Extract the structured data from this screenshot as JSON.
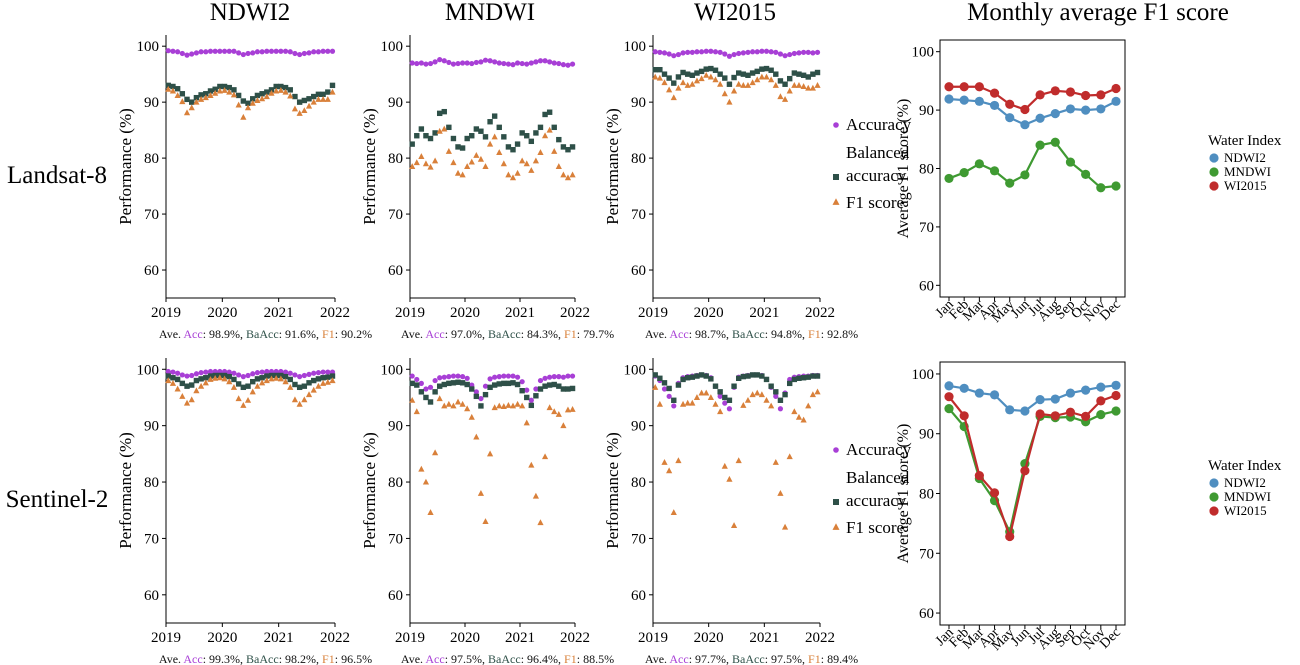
{
  "column_titles": [
    "NDWI2",
    "MNDWI",
    "WI2015",
    "Monthly average F1 score"
  ],
  "row_labels": [
    "Landsat-8",
    "Sentinel-2"
  ],
  "perf_axis": {
    "ylabel": "Performance (%)",
    "yticks": [
      60,
      70,
      80,
      90,
      100
    ],
    "ylim": [
      55,
      102
    ],
    "xticks": [
      "2019",
      "2020",
      "2021",
      "2022"
    ],
    "xlim": [
      2019,
      2022
    ]
  },
  "f1_axis": {
    "ylabel": "Average F1 score (%)",
    "yticks": [
      60,
      70,
      80,
      90,
      100
    ],
    "ylim": [
      58,
      102
    ],
    "months": [
      "Jan",
      "Feb",
      "Mar",
      "Apr",
      "May",
      "Jun",
      "Jul",
      "Aug",
      "Sep",
      "Oct",
      "Nov",
      "Dec"
    ]
  },
  "perf_legend": {
    "items": [
      "Accuracy",
      "Balanced accuracy",
      "F1 score"
    ]
  },
  "f1_legend": {
    "title": "Water Index",
    "items": [
      "NDWI2",
      "MNDWI",
      "WI2015"
    ]
  },
  "summary_labels": {
    "prefix": "Ave.",
    "acc": "Acc",
    "baacc": "BaAcc",
    "f1": "F1"
  },
  "colors": {
    "accuracy": "#a83fd6",
    "balanced": "#2e5048",
    "f1": "#d9803a",
    "ndwi2": "#4f8ec0",
    "mndwi": "#3f9a32",
    "wi2015": "#c02c2c"
  },
  "chart_data": [
    {
      "type": "scatter",
      "row": "Landsat-8",
      "index": "NDWI2",
      "start": 2019.04,
      "step": 0.0833,
      "summary": {
        "acc": "98.9%",
        "baacc": "91.6%",
        "f1": "90.2%"
      },
      "series": [
        {
          "name": "Accuracy",
          "values": [
            99.2,
            99.1,
            99.0,
            98.7,
            98.4,
            98.6,
            98.8,
            99.0,
            99.0,
            99.1,
            99.1,
            99.1,
            99.1,
            99.1,
            99.1,
            98.8,
            98.5,
            98.7,
            98.8,
            99.0,
            99.0,
            99.1,
            99.1,
            99.1,
            99.1,
            99.1,
            99.0,
            98.7,
            98.5,
            98.7,
            98.8,
            99.0,
            99.0,
            99.1,
            99.1,
            99.1
          ]
        },
        {
          "name": "Balanced accuracy",
          "values": [
            93.0,
            92.8,
            92.4,
            91.5,
            90.5,
            90.0,
            90.8,
            91.3,
            91.5,
            92.0,
            92.3,
            92.8,
            92.8,
            92.6,
            92.2,
            91.2,
            90.2,
            89.8,
            90.6,
            91.2,
            91.5,
            91.8,
            92.2,
            92.8,
            92.8,
            92.6,
            92.2,
            91.0,
            90.0,
            90.3,
            90.6,
            91.0,
            91.4,
            91.4,
            91.8,
            93.0
          ]
        },
        {
          "name": "F1 score",
          "values": [
            92.3,
            92.0,
            91.2,
            90.1,
            88.1,
            89.0,
            90.0,
            90.5,
            90.8,
            91.2,
            91.6,
            92.0,
            92.1,
            91.8,
            91.3,
            89.5,
            87.3,
            89.0,
            89.8,
            90.3,
            90.6,
            91.0,
            91.6,
            92.0,
            92.1,
            91.8,
            91.1,
            88.8,
            88.0,
            88.5,
            89.3,
            90.0,
            90.5,
            90.5,
            90.5,
            91.8
          ]
        }
      ]
    },
    {
      "type": "scatter",
      "row": "Landsat-8",
      "index": "MNDWI",
      "start": 2019.04,
      "step": 0.0833,
      "summary": {
        "acc": "97.0%",
        "baacc": "84.3%",
        "f1": "79.7%"
      },
      "series": [
        {
          "name": "Accuracy",
          "values": [
            97.0,
            96.9,
            97.0,
            96.8,
            96.9,
            97.2,
            97.6,
            97.4,
            97.1,
            96.8,
            96.9,
            97.0,
            97.0,
            96.9,
            97.1,
            97.2,
            97.5,
            97.4,
            97.2,
            97.0,
            96.9,
            96.8,
            96.7,
            97.0,
            96.9,
            96.8,
            97.0,
            97.2,
            97.4,
            97.4,
            97.2,
            97.0,
            96.9,
            96.7,
            96.6,
            96.8
          ]
        },
        {
          "name": "Balanced accuracy",
          "values": [
            82.5,
            84.0,
            85.2,
            84.0,
            83.5,
            84.5,
            88.0,
            88.3,
            85.5,
            83.5,
            82.0,
            81.8,
            83.5,
            84.0,
            85.2,
            84.8,
            83.8,
            86.5,
            87.5,
            85.5,
            83.8,
            82.0,
            81.5,
            82.5,
            84.5,
            84.0,
            83.0,
            84.5,
            85.5,
            87.8,
            88.2,
            85.5,
            83.3,
            82.0,
            81.5,
            82.0
          ]
        },
        {
          "name": "F1 score",
          "values": [
            78.5,
            79.2,
            80.3,
            79.0,
            78.4,
            79.5,
            84.8,
            85.2,
            81.2,
            79.2,
            77.3,
            77.0,
            78.5,
            79.3,
            80.5,
            79.8,
            78.5,
            82.5,
            83.8,
            81.0,
            79.0,
            77.0,
            76.5,
            77.3,
            79.5,
            79.0,
            77.8,
            79.5,
            81.0,
            84.0,
            85.0,
            81.2,
            78.5,
            77.0,
            76.5,
            77.0
          ]
        }
      ]
    },
    {
      "type": "scatter",
      "row": "Landsat-8",
      "index": "WI2015",
      "start": 2019.04,
      "step": 0.0833,
      "summary": {
        "acc": "98.7%",
        "baacc": "94.8%",
        "f1": "92.8%"
      },
      "series": [
        {
          "name": "Accuracy",
          "values": [
            99.0,
            98.9,
            98.8,
            98.6,
            98.3,
            98.5,
            98.8,
            98.9,
            98.9,
            99.0,
            99.0,
            99.1,
            99.1,
            99.0,
            98.9,
            98.6,
            98.2,
            98.5,
            98.7,
            98.8,
            98.9,
            99.0,
            99.0,
            99.1,
            99.1,
            99.0,
            98.9,
            98.6,
            98.3,
            98.5,
            98.7,
            98.8,
            98.9,
            98.9,
            98.8,
            98.9
          ]
        },
        {
          "name": "Balanced accuracy",
          "values": [
            95.8,
            95.8,
            95.0,
            94.3,
            93.4,
            94.5,
            95.3,
            95.0,
            94.8,
            95.2,
            95.5,
            95.9,
            96.0,
            95.7,
            95.0,
            94.3,
            93.2,
            94.4,
            95.2,
            95.0,
            94.8,
            95.2,
            95.5,
            95.9,
            96.0,
            95.7,
            95.0,
            93.8,
            93.2,
            94.2,
            95.2,
            95.0,
            94.8,
            94.5,
            95.0,
            95.3
          ]
        },
        {
          "name": "F1 score",
          "values": [
            94.5,
            94.3,
            93.5,
            92.2,
            90.8,
            92.5,
            93.5,
            93.0,
            93.2,
            93.8,
            94.2,
            94.8,
            94.5,
            94.0,
            93.2,
            91.5,
            90.0,
            92.0,
            93.2,
            93.0,
            93.0,
            93.5,
            94.0,
            94.5,
            94.5,
            94.0,
            93.0,
            91.0,
            90.5,
            92.0,
            93.0,
            93.0,
            92.8,
            92.5,
            92.5,
            93.0
          ]
        }
      ]
    },
    {
      "type": "scatter",
      "row": "Sentinel-2",
      "index": "NDWI2",
      "start": 2019.04,
      "step": 0.0833,
      "summary": {
        "acc": "99.3%",
        "baacc": "98.2%",
        "f1": "96.5%"
      },
      "series": [
        {
          "name": "Accuracy",
          "values": [
            99.6,
            99.5,
            99.3,
            99.0,
            98.8,
            98.9,
            99.2,
            99.4,
            99.5,
            99.6,
            99.6,
            99.6,
            99.6,
            99.5,
            99.3,
            99.0,
            98.7,
            98.9,
            99.2,
            99.4,
            99.5,
            99.6,
            99.6,
            99.6,
            99.6,
            99.5,
            99.3,
            99.0,
            98.7,
            98.9,
            99.1,
            99.3,
            99.4,
            99.5,
            99.5,
            99.5
          ]
        },
        {
          "name": "Balanced accuracy",
          "values": [
            98.8,
            98.5,
            98.2,
            97.5,
            97.0,
            97.2,
            98.0,
            98.3,
            98.5,
            98.8,
            98.9,
            98.9,
            98.9,
            98.7,
            98.2,
            97.4,
            96.8,
            97.0,
            97.8,
            98.3,
            98.5,
            98.8,
            98.9,
            98.9,
            98.9,
            98.7,
            98.2,
            97.3,
            96.8,
            97.0,
            97.6,
            98.0,
            98.3,
            98.5,
            98.6,
            98.8
          ]
        },
        {
          "name": "F1 score",
          "values": [
            98.0,
            97.5,
            96.5,
            95.2,
            94.0,
            94.6,
            96.2,
            97.0,
            97.6,
            98.2,
            98.4,
            98.5,
            98.3,
            97.8,
            96.8,
            94.8,
            93.6,
            94.5,
            96.0,
            97.0,
            97.6,
            98.0,
            98.3,
            98.4,
            98.3,
            97.8,
            96.8,
            94.6,
            93.8,
            94.6,
            95.5,
            96.3,
            97.0,
            97.5,
            97.7,
            98.0
          ]
        }
      ]
    },
    {
      "type": "scatter",
      "row": "Sentinel-2",
      "index": "MNDWI",
      "start": 2019.04,
      "step": 0.0833,
      "summary": {
        "acc": "97.5%",
        "baacc": "96.4%",
        "f1": "88.5%"
      },
      "series": [
        {
          "name": "Accuracy",
          "values": [
            98.8,
            98.2,
            97.5,
            96.5,
            96.8,
            98.0,
            98.5,
            98.6,
            98.7,
            98.8,
            98.8,
            98.7,
            98.4,
            97.2,
            96.0,
            94.8,
            97.0,
            98.3,
            98.6,
            98.7,
            98.8,
            98.8,
            98.8,
            98.6,
            97.8,
            96.3,
            94.5,
            96.5,
            98.0,
            98.4,
            98.6,
            98.7,
            98.7,
            98.6,
            98.8,
            98.8
          ]
        },
        {
          "name": "Balanced accuracy",
          "values": [
            97.5,
            97.2,
            96.0,
            95.0,
            94.2,
            96.0,
            97.0,
            97.3,
            97.5,
            97.6,
            97.7,
            97.6,
            97.3,
            96.5,
            95.2,
            93.5,
            95.5,
            96.8,
            97.2,
            97.4,
            97.5,
            97.5,
            97.6,
            97.3,
            96.2,
            95.0,
            93.6,
            95.3,
            96.5,
            97.0,
            97.2,
            97.3,
            97.0,
            96.5,
            96.5,
            96.6
          ]
        },
        {
          "name": "F1 score",
          "values": [
            94.5,
            92.5,
            82.3,
            80.0,
            74.6,
            85.2,
            94.8,
            93.5,
            93.8,
            93.5,
            94.2,
            93.8,
            93.0,
            91.5,
            88.0,
            78.0,
            73.0,
            85.0,
            93.2,
            93.5,
            93.4,
            93.6,
            93.5,
            93.8,
            93.5,
            90.5,
            83.0,
            77.5,
            72.8,
            84.5,
            93.2,
            92.5,
            92.0,
            90.0,
            92.8,
            92.9
          ]
        }
      ]
    },
    {
      "type": "scatter",
      "row": "Sentinel-2",
      "index": "WI2015",
      "start": 2019.04,
      "step": 0.0833,
      "summary": {
        "acc": "97.7%",
        "baacc": "97.5%",
        "f1": "89.4%"
      },
      "series": [
        {
          "name": "Accuracy",
          "values": [
            98.8,
            98.0,
            96.5,
            95.2,
            93.5,
            97.5,
            98.5,
            98.7,
            98.8,
            98.9,
            99.0,
            98.9,
            98.5,
            97.0,
            95.2,
            94.0,
            93.0,
            96.8,
            98.6,
            98.8,
            98.9,
            99.0,
            99.0,
            98.9,
            98.2,
            96.8,
            95.2,
            93.0,
            95.8,
            98.2,
            98.6,
            98.7,
            98.8,
            98.8,
            98.9,
            98.9
          ]
        },
        {
          "name": "Balanced accuracy",
          "values": [
            99.0,
            98.4,
            97.6,
            96.6,
            94.5,
            97.2,
            98.2,
            98.5,
            98.6,
            98.8,
            99.0,
            98.8,
            98.3,
            97.0,
            96.0,
            95.0,
            94.5,
            97.0,
            98.4,
            98.7,
            98.8,
            99.0,
            99.0,
            98.8,
            98.2,
            97.0,
            96.0,
            94.5,
            95.5,
            97.5,
            98.2,
            98.4,
            98.5,
            98.6,
            98.8,
            98.8
          ]
        },
        {
          "name": "F1 score",
          "values": [
            96.8,
            93.8,
            83.5,
            82.0,
            74.6,
            83.8,
            93.8,
            94.0,
            94.0,
            95.0,
            95.8,
            95.8,
            95.0,
            93.8,
            92.5,
            82.8,
            80.5,
            72.3,
            83.8,
            93.6,
            94.5,
            95.5,
            95.8,
            95.5,
            94.5,
            93.5,
            83.5,
            78.0,
            72.0,
            84.5,
            92.5,
            91.5,
            91.0,
            93.5,
            95.5,
            96.0
          ]
        }
      ]
    },
    {
      "type": "line",
      "row": "Landsat-8",
      "title": "Monthly average F1 score",
      "series": [
        {
          "name": "NDWI2",
          "values": [
            91.9,
            91.7,
            91.5,
            90.8,
            88.7,
            87.5,
            88.6,
            89.4,
            90.2,
            90.0,
            90.2,
            91.5
          ]
        },
        {
          "name": "MNDWI",
          "values": [
            78.3,
            79.3,
            80.8,
            79.6,
            77.5,
            78.9,
            84.0,
            84.5,
            81.1,
            79.0,
            76.7,
            77.0
          ]
        },
        {
          "name": "WI2015",
          "values": [
            94.0,
            94.0,
            94.0,
            92.9,
            91.0,
            90.1,
            92.6,
            93.3,
            93.1,
            92.5,
            92.6,
            93.7
          ]
        }
      ]
    },
    {
      "type": "line",
      "row": "Sentinel-2",
      "title": "Monthly average F1 score",
      "series": [
        {
          "name": "NDWI2",
          "values": [
            98.0,
            97.6,
            96.8,
            96.5,
            94.0,
            93.8,
            95.7,
            95.8,
            96.8,
            97.3,
            97.8,
            98.1
          ]
        },
        {
          "name": "MNDWI",
          "values": [
            94.2,
            91.2,
            82.5,
            78.8,
            73.6,
            85.0,
            92.9,
            92.7,
            92.8,
            92.0,
            93.2,
            93.8
          ]
        },
        {
          "name": "WI2015",
          "values": [
            96.2,
            93.0,
            83.0,
            80.1,
            72.8,
            83.8,
            93.3,
            93.0,
            93.6,
            92.9,
            95.5,
            96.4
          ]
        }
      ]
    }
  ]
}
